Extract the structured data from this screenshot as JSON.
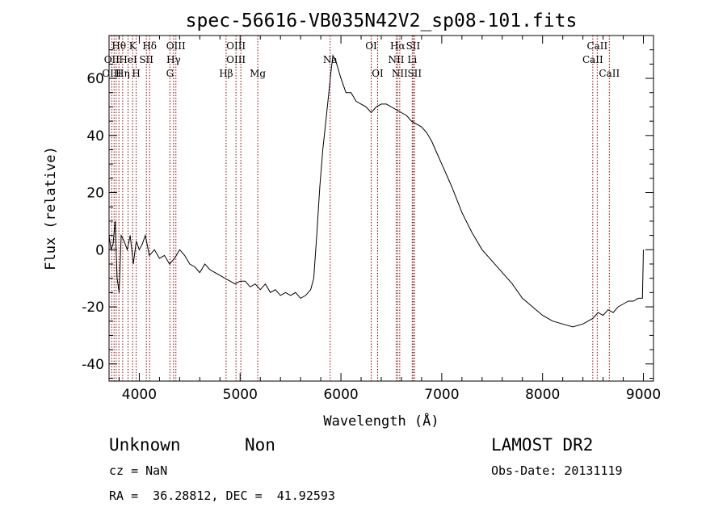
{
  "chart_data": {
    "type": "line",
    "title": "spec-56616-VB035N42V2_sp08-101.fits",
    "xlabel": "Wavelength (Å)",
    "ylabel": "Flux (relative)",
    "xlim": [
      3700,
      9100
    ],
    "ylim": [
      -46,
      75
    ],
    "xticks": [
      4000,
      5000,
      6000,
      7000,
      8000,
      9000
    ],
    "yticks": [
      -40,
      -20,
      0,
      20,
      40,
      60
    ],
    "grid": false,
    "series": [
      {
        "x": [
          3700,
          3720,
          3740,
          3760,
          3780,
          3800,
          3820,
          3850,
          3880,
          3910,
          3940,
          3970,
          4000,
          4030,
          4060,
          4100,
          4150,
          4200,
          4250,
          4300,
          4350,
          4400,
          4450,
          4500,
          4550,
          4600,
          4650,
          4700,
          4750,
          4800,
          4850,
          4900,
          4950,
          5000,
          5050,
          5100,
          5150,
          5200,
          5250,
          5300,
          5350,
          5400,
          5450,
          5500,
          5550,
          5600,
          5650,
          5700,
          5730,
          5760,
          5790,
          5820,
          5850,
          5880,
          5900,
          5920,
          5950,
          6000,
          6050,
          6100,
          6150,
          6200,
          6250,
          6300,
          6350,
          6400,
          6450,
          6500,
          6550,
          6600,
          6650,
          6700,
          6750,
          6800,
          6850,
          6900,
          6950,
          7000,
          7100,
          7200,
          7300,
          7400,
          7500,
          7600,
          7700,
          7800,
          7900,
          8000,
          8100,
          8200,
          8300,
          8400,
          8500,
          8550,
          8600,
          8650,
          8700,
          8750,
          8800,
          8850,
          8900,
          8950,
          8990,
          9000
        ],
        "y": [
          5,
          0,
          2,
          10,
          -10,
          -15,
          5,
          3,
          0,
          5,
          -5,
          3,
          0,
          2,
          5,
          -2,
          0,
          -3,
          -2,
          -5,
          -3,
          0,
          -2,
          -5,
          -6,
          -8,
          -5,
          -7,
          -8,
          -9,
          -10,
          -11,
          -12,
          -11,
          -11,
          -13,
          -12,
          -14,
          -12,
          -15,
          -14,
          -16,
          -15,
          -16,
          -15,
          -17,
          -16,
          -14,
          -10,
          5,
          22,
          35,
          45,
          55,
          62,
          68,
          66,
          60,
          55,
          55,
          52,
          51,
          50,
          48,
          50,
          51,
          51,
          50,
          49,
          48,
          47,
          45,
          44,
          43,
          41,
          38,
          34,
          30,
          22,
          13,
          6,
          0,
          -4,
          -8,
          -12,
          -17,
          -20,
          -23,
          -25,
          -26,
          -27,
          -26,
          -24,
          -22,
          -23,
          -21,
          -22,
          -20,
          -19,
          -18,
          -18,
          -17,
          -17,
          0
        ]
      }
    ],
    "line_labels_row1": [
      {
        "text": "Hθ",
        "x": 3798
      },
      {
        "text": "K",
        "x": 3934
      },
      {
        "text": "Hδ",
        "x": 4102
      },
      {
        "text": "OIII",
        "x": 4363
      },
      {
        "text": "OIII",
        "x": 4959
      },
      {
        "text": "OI",
        "x": 6300
      },
      {
        "text": "Hα",
        "x": 6563
      },
      {
        "text": "SII",
        "x": 6716
      },
      {
        "text": "CaII",
        "x": 8542
      }
    ],
    "line_labels_row2": [
      {
        "text": "OII",
        "x": 3727
      },
      {
        "text": "HeI",
        "x": 3889
      },
      {
        "text": "SII",
        "x": 4070
      },
      {
        "text": "Hγ",
        "x": 4340
      },
      {
        "text": "OIII",
        "x": 4959
      },
      {
        "text": "Na",
        "x": 5893
      },
      {
        "text": "NII",
        "x": 6548
      },
      {
        "text": "Li",
        "x": 6707
      },
      {
        "text": "CaII",
        "x": 8498
      }
    ],
    "line_labels_row3": [
      {
        "text": "OIII",
        "x": 3727
      },
      {
        "text": "Hη",
        "x": 3835
      },
      {
        "text": "H",
        "x": 3969
      },
      {
        "text": "G",
        "x": 4304
      },
      {
        "text": "Hβ",
        "x": 4861
      },
      {
        "text": "Mg",
        "x": 5175
      },
      {
        "text": "OI",
        "x": 6364
      },
      {
        "text": "NII",
        "x": 6583
      },
      {
        "text": "SII",
        "x": 6731
      },
      {
        "text": "CaII",
        "x": 8662
      }
    ],
    "marker_lines": [
      3727,
      3750,
      3771,
      3798,
      3835,
      3889,
      3934,
      3969,
      4070,
      4102,
      4304,
      4340,
      4363,
      4861,
      4959,
      5007,
      5175,
      5893,
      6300,
      6364,
      6548,
      6563,
      6583,
      6707,
      6716,
      6731,
      8498,
      8542,
      8662
    ]
  },
  "info": {
    "class": "Unknown",
    "subclass": "Non",
    "survey": "LAMOST DR2",
    "cz": "cz = NaN",
    "obs_date": "Obs-Date: 20131119",
    "coords": "RA =  36.28812, DEC =  41.92593"
  },
  "colors": {
    "spectrum": "#000000",
    "marker": "#8b0000",
    "axes": "#000000"
  }
}
